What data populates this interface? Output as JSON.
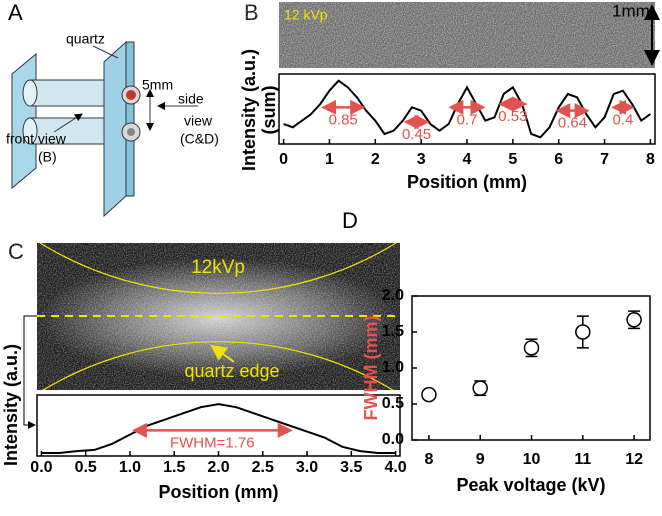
{
  "panel_labels": [
    "A",
    "B",
    "C",
    "D"
  ],
  "diagram": {
    "quartz": "quartz",
    "gap": "5mm",
    "side_view": [
      "side",
      "view",
      "(C&D)"
    ],
    "front_view": [
      "front view",
      "(B)"
    ]
  },
  "images": {
    "B": {
      "label": "12 kVp",
      "scale": "1mm"
    },
    "C": {
      "label": "12kVp",
      "annotation": "quartz edge"
    }
  },
  "chart_data": [
    {
      "type": "line",
      "xlabel": "Position (mm)",
      "ylabel": [
        "Intensity (a.u.)",
        "(sum)"
      ],
      "color": "#000000",
      "x": [
        0,
        0.2,
        0.4,
        0.6,
        0.8,
        1,
        1.2,
        1.4,
        1.6,
        1.8,
        2,
        2.2,
        2.4,
        2.6,
        2.8,
        3,
        3.2,
        3.4,
        3.6,
        3.8,
        4,
        4.2,
        4.4,
        4.6,
        4.8,
        5,
        5.2,
        5.4,
        5.6,
        5.8,
        6,
        6.2,
        6.4,
        6.6,
        6.8,
        7,
        7.2,
        7.4,
        7.6,
        7.8,
        8
      ],
      "values": [
        0.3,
        0.25,
        0.35,
        0.45,
        0.6,
        0.8,
        0.95,
        0.85,
        0.7,
        0.5,
        0.35,
        0.15,
        0.2,
        0.35,
        0.55,
        0.5,
        0.3,
        0.2,
        0.3,
        0.6,
        0.85,
        0.6,
        0.35,
        0.4,
        0.75,
        0.85,
        0.6,
        0.15,
        0.1,
        0.25,
        0.55,
        0.75,
        0.7,
        0.45,
        0.25,
        0.4,
        0.75,
        0.8,
        0.6,
        0.35,
        0.45
      ],
      "xlim": [
        -0.1,
        8.1
      ],
      "ylim": [
        0,
        1.05
      ],
      "xticks": [
        0,
        1,
        2,
        3,
        4,
        5,
        6,
        7,
        8
      ],
      "fwhm": {
        "color": "#e2534f",
        "centers": [
          1.3,
          2.9,
          4.0,
          5.0,
          6.3,
          7.4
        ],
        "levels": [
          0.55,
          0.33,
          0.55,
          0.6,
          0.5,
          0.55
        ],
        "values": [
          0.85,
          0.45,
          0.7,
          0.53,
          0.64,
          0.4
        ]
      }
    },
    {
      "type": "line",
      "xlabel": "Position (mm)",
      "ylabel": [
        "Intensity (a.u.)"
      ],
      "color": "#000000",
      "x": [
        0,
        0.2,
        0.4,
        0.6,
        0.8,
        1,
        1.2,
        1.4,
        1.6,
        1.8,
        2,
        2.2,
        2.4,
        2.6,
        2.8,
        3,
        3.2,
        3.4,
        3.6,
        3.8,
        4
      ],
      "values": [
        0.05,
        0.05,
        0.08,
        0.1,
        0.2,
        0.35,
        0.5,
        0.6,
        0.7,
        0.8,
        0.85,
        0.8,
        0.7,
        0.6,
        0.5,
        0.4,
        0.3,
        0.15,
        0.08,
        0.05,
        0.05
      ],
      "xlim": [
        -0.05,
        4.05
      ],
      "ylim": [
        0,
        1
      ],
      "xticks": [
        {
          "value": 0,
          "label": "0.0"
        },
        0.5,
        {
          "value": 1,
          "label": "1.0"
        },
        1.5,
        {
          "value": 2,
          "label": "2.0"
        },
        2.5,
        {
          "value": 3,
          "label": "3.0"
        },
        3.5,
        {
          "value": 4,
          "label": "4.0"
        }
      ],
      "fwhm": {
        "color": "#e2534f",
        "centers": [
          1.93
        ],
        "levels": [
          0.42
        ],
        "values": [
          1.76
        ],
        "value_labels": [
          "FWHM=1.76"
        ]
      }
    },
    {
      "type": "scatter",
      "xlabel": "Peak voltage (kV)",
      "ylabel": [
        "FWHM (mm)"
      ],
      "ylabel_color": "#e2534f",
      "color": "#000000",
      "x": [
        8,
        9,
        10,
        11,
        12
      ],
      "values": [
        0.63,
        0.72,
        1.28,
        1.5,
        1.67
      ],
      "errors": [
        0.06,
        0.1,
        0.12,
        0.22,
        0.12
      ],
      "xlim": [
        7.67,
        12.31
      ],
      "ylim": [
        0,
        2
      ],
      "xticks": [
        8,
        9,
        10,
        11,
        12
      ],
      "yticks": [
        {
          "value": 0,
          "label": "0.0"
        },
        0.5,
        {
          "value": 1,
          "label": "1.0"
        },
        1.5,
        {
          "value": 2,
          "label": "2.0"
        }
      ]
    }
  ]
}
